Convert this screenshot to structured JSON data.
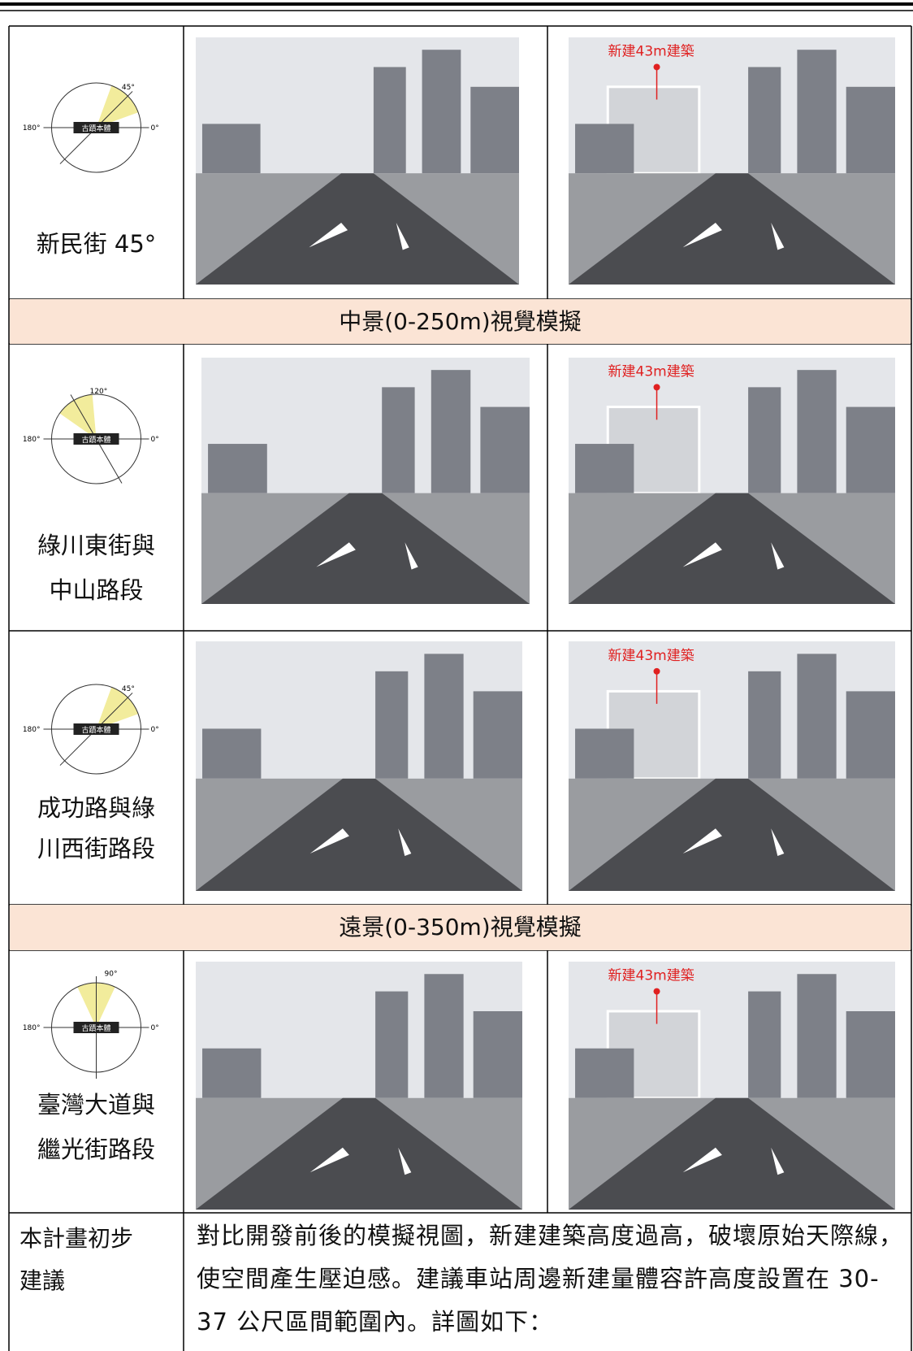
{
  "rows": [
    {
      "diagram": {
        "angle": "45°",
        "left": "180°",
        "right": "0°",
        "center": "古蹟本體"
      },
      "location": [
        "新民街 45°"
      ],
      "annotation": "新建43m建築"
    },
    {
      "diagram": {
        "angle": "120°",
        "left": "180°",
        "right": "0°",
        "center": "古蹟本體"
      },
      "location": [
        "綠川東街與",
        "中山路段"
      ],
      "annotation": "新建43m建築"
    },
    {
      "diagram": {
        "angle": "45°",
        "left": "180°",
        "right": "0°",
        "center": "古蹟本體"
      },
      "location": [
        "成功路與綠",
        "川西街路段"
      ],
      "annotation": "新建43m建築"
    },
    {
      "diagram": {
        "angle": "90°",
        "left": "180°",
        "right": "0°",
        "center": "古蹟本體"
      },
      "location": [
        "臺灣大道與",
        "繼光街路段"
      ],
      "annotation": "新建43m建築"
    }
  ],
  "sections": [
    "中景(0-250m)視覺模擬",
    "遠景(0-350m)視覺模擬"
  ],
  "recommendation": {
    "label": [
      "本計畫初步",
      "建議"
    ],
    "text": "對比開發前後的模擬視圖，新建建築高度過高，破壞原始天際線，使空間產生壓迫感。建議車站周邊新建量體容許高度設置在 30-37 公尺區間範圍內。詳圖如下："
  }
}
